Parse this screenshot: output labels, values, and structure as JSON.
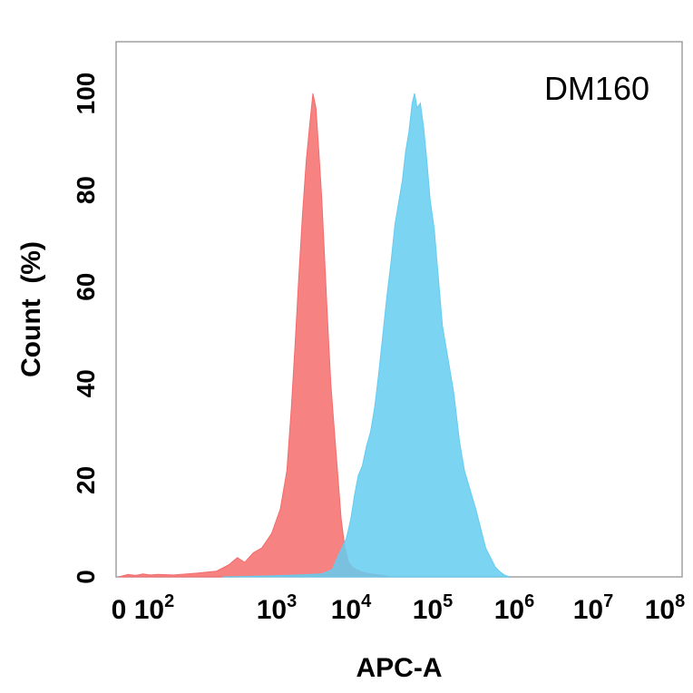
{
  "chart_data": {
    "type": "area",
    "title": "",
    "annotation": "DM160",
    "xlabel": "APC-A",
    "ylabel": "Count  (%)",
    "xscale": "biexponential-log",
    "x_ticks": [
      {
        "value": 0,
        "base": "0",
        "exp": ""
      },
      {
        "value": 100,
        "base": "10",
        "exp": "2"
      },
      {
        "value": 1000,
        "base": "10",
        "exp": "3"
      },
      {
        "value": 10000,
        "base": "10",
        "exp": "4"
      },
      {
        "value": 100000,
        "base": "10",
        "exp": "5"
      },
      {
        "value": 1000000,
        "base": "10",
        "exp": "6"
      },
      {
        "value": 10000000,
        "base": "10",
        "exp": "7"
      },
      {
        "value": 100000000,
        "base": "10",
        "exp": "8"
      }
    ],
    "y_ticks": [
      0,
      20,
      40,
      60,
      80,
      100
    ],
    "ylim": [
      0,
      110
    ],
    "grid": false,
    "series": [
      {
        "color": "#f46c6c",
        "opacity": 0.85,
        "points": [
          [
            0.85,
            0
          ],
          [
            1.1,
            0.5
          ],
          [
            1.3,
            0.3
          ],
          [
            1.5,
            0.6
          ],
          [
            1.7,
            0.4
          ],
          [
            1.9,
            0.5
          ],
          [
            2.1,
            0.4
          ],
          [
            2.3,
            0.8
          ],
          [
            2.45,
            1.2
          ],
          [
            2.55,
            2.5
          ],
          [
            2.62,
            4
          ],
          [
            2.68,
            3
          ],
          [
            2.75,
            5
          ],
          [
            2.82,
            6
          ],
          [
            2.9,
            9
          ],
          [
            2.97,
            14
          ],
          [
            3.04,
            22
          ],
          [
            3.1,
            35
          ],
          [
            3.15,
            48
          ],
          [
            3.2,
            62
          ],
          [
            3.25,
            75
          ],
          [
            3.3,
            86
          ],
          [
            3.35,
            94
          ],
          [
            3.39,
            100
          ],
          [
            3.43,
            97
          ],
          [
            3.47,
            88
          ],
          [
            3.51,
            78
          ],
          [
            3.55,
            65
          ],
          [
            3.59,
            52
          ],
          [
            3.63,
            40
          ],
          [
            3.67,
            32
          ],
          [
            3.72,
            22
          ],
          [
            3.77,
            12
          ],
          [
            3.82,
            6
          ],
          [
            3.87,
            3
          ],
          [
            3.92,
            2
          ],
          [
            3.97,
            1.5
          ],
          [
            4.05,
            1
          ],
          [
            4.15,
            0.6
          ],
          [
            4.3,
            0.3
          ],
          [
            4.4,
            0
          ]
        ]
      },
      {
        "color": "#64ccf0",
        "opacity": 0.85,
        "points": [
          [
            2.5,
            0
          ],
          [
            2.9,
            0.2
          ],
          [
            3.2,
            0.4
          ],
          [
            3.5,
            0.6
          ],
          [
            3.65,
            1.5
          ],
          [
            3.72,
            4
          ],
          [
            3.78,
            6
          ],
          [
            3.84,
            8
          ],
          [
            3.9,
            12
          ],
          [
            3.95,
            17
          ],
          [
            4.0,
            21
          ],
          [
            4.05,
            23
          ],
          [
            4.1,
            27
          ],
          [
            4.15,
            30
          ],
          [
            4.2,
            35
          ],
          [
            4.25,
            42
          ],
          [
            4.3,
            50
          ],
          [
            4.35,
            58
          ],
          [
            4.4,
            65
          ],
          [
            4.45,
            73
          ],
          [
            4.5,
            78
          ],
          [
            4.54,
            82
          ],
          [
            4.58,
            88
          ],
          [
            4.62,
            92
          ],
          [
            4.66,
            98
          ],
          [
            4.69,
            100
          ],
          [
            4.72,
            97
          ],
          [
            4.76,
            98
          ],
          [
            4.8,
            93
          ],
          [
            4.84,
            86
          ],
          [
            4.88,
            78
          ],
          [
            4.93,
            72
          ],
          [
            4.98,
            62
          ],
          [
            5.03,
            52
          ],
          [
            5.1,
            45
          ],
          [
            5.17,
            38
          ],
          [
            5.24,
            28
          ],
          [
            5.3,
            22
          ],
          [
            5.37,
            18
          ],
          [
            5.44,
            14
          ],
          [
            5.5,
            10
          ],
          [
            5.56,
            6
          ],
          [
            5.62,
            4
          ],
          [
            5.68,
            2
          ],
          [
            5.74,
            1
          ],
          [
            5.8,
            0.3
          ],
          [
            5.86,
            0
          ]
        ]
      }
    ]
  }
}
